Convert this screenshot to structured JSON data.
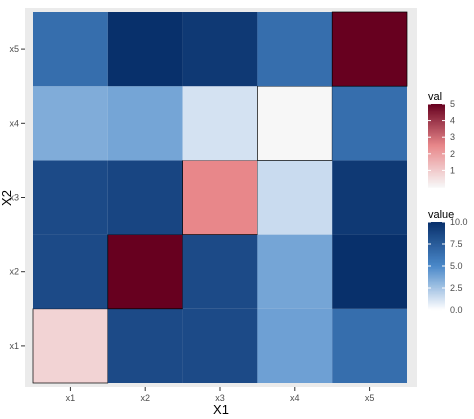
{
  "chart_data": {
    "type": "heatmap",
    "xlabel": "X1",
    "ylabel": "X2",
    "x_categories": [
      "x1",
      "x2",
      "x3",
      "x4",
      "x5"
    ],
    "y_categories": [
      "x1",
      "x2",
      "x3",
      "x4",
      "x5"
    ],
    "cells": [
      {
        "x": "x1",
        "y": "x1",
        "scale": "val",
        "v": 0.8
      },
      {
        "x": "x2",
        "y": "x1",
        "scale": "value",
        "v": 8.5
      },
      {
        "x": "x3",
        "y": "x1",
        "scale": "value",
        "v": 8.5
      },
      {
        "x": "x4",
        "y": "x1",
        "scale": "value",
        "v": 4.0
      },
      {
        "x": "x5",
        "y": "x1",
        "scale": "value",
        "v": 6.5
      },
      {
        "x": "x1",
        "y": "x2",
        "scale": "value",
        "v": 8.5
      },
      {
        "x": "x2",
        "y": "x2",
        "scale": "val",
        "v": 5.0
      },
      {
        "x": "x3",
        "y": "x2",
        "scale": "value",
        "v": 8.5
      },
      {
        "x": "x4",
        "y": "x2",
        "scale": "value",
        "v": 3.8
      },
      {
        "x": "x5",
        "y": "x2",
        "scale": "value",
        "v": 10.0
      },
      {
        "x": "x1",
        "y": "x3",
        "scale": "value",
        "v": 8.5
      },
      {
        "x": "x2",
        "y": "x3",
        "scale": "value",
        "v": 8.8
      },
      {
        "x": "x3",
        "y": "x3",
        "scale": "val",
        "v": 2.5
      },
      {
        "x": "x4",
        "y": "x3",
        "scale": "value",
        "v": 1.5
      },
      {
        "x": "x5",
        "y": "x3",
        "scale": "value",
        "v": 9.5
      },
      {
        "x": "x1",
        "y": "x4",
        "scale": "value",
        "v": 3.5
      },
      {
        "x": "x2",
        "y": "x4",
        "scale": "value",
        "v": 3.8
      },
      {
        "x": "x3",
        "y": "x4",
        "scale": "value",
        "v": 1.2
      },
      {
        "x": "x4",
        "y": "x4",
        "scale": "val",
        "v": 0.0
      },
      {
        "x": "x5",
        "y": "x4",
        "scale": "value",
        "v": 6.5
      },
      {
        "x": "x1",
        "y": "x5",
        "scale": "value",
        "v": 6.5
      },
      {
        "x": "x2",
        "y": "x5",
        "scale": "value",
        "v": 10.0
      },
      {
        "x": "x3",
        "y": "x5",
        "scale": "value",
        "v": 9.5
      },
      {
        "x": "x4",
        "y": "x5",
        "scale": "value",
        "v": 6.5
      },
      {
        "x": "x5",
        "y": "x5",
        "scale": "val",
        "v": 5.0
      }
    ],
    "legends": [
      {
        "title": "val",
        "ticks": [
          "5",
          "4",
          "3",
          "2",
          "1"
        ],
        "tick_values": [
          5,
          4,
          3,
          2,
          1
        ],
        "range": [
          0,
          5
        ],
        "low_color": "#f7f7f7",
        "high_color": "#67001f",
        "mid_color": "#e8878a"
      },
      {
        "title": "value",
        "ticks": [
          "10.0",
          "7.5",
          "5.0",
          "2.5",
          "0.0"
        ],
        "tick_values": [
          10,
          7.5,
          5,
          2.5,
          0
        ],
        "range": [
          0,
          10
        ],
        "low_color": "#ffffff",
        "high_color": "#08306b",
        "mid_color": "#4a88c9"
      }
    ],
    "panel_background": "#ebebeb",
    "grid": true
  }
}
